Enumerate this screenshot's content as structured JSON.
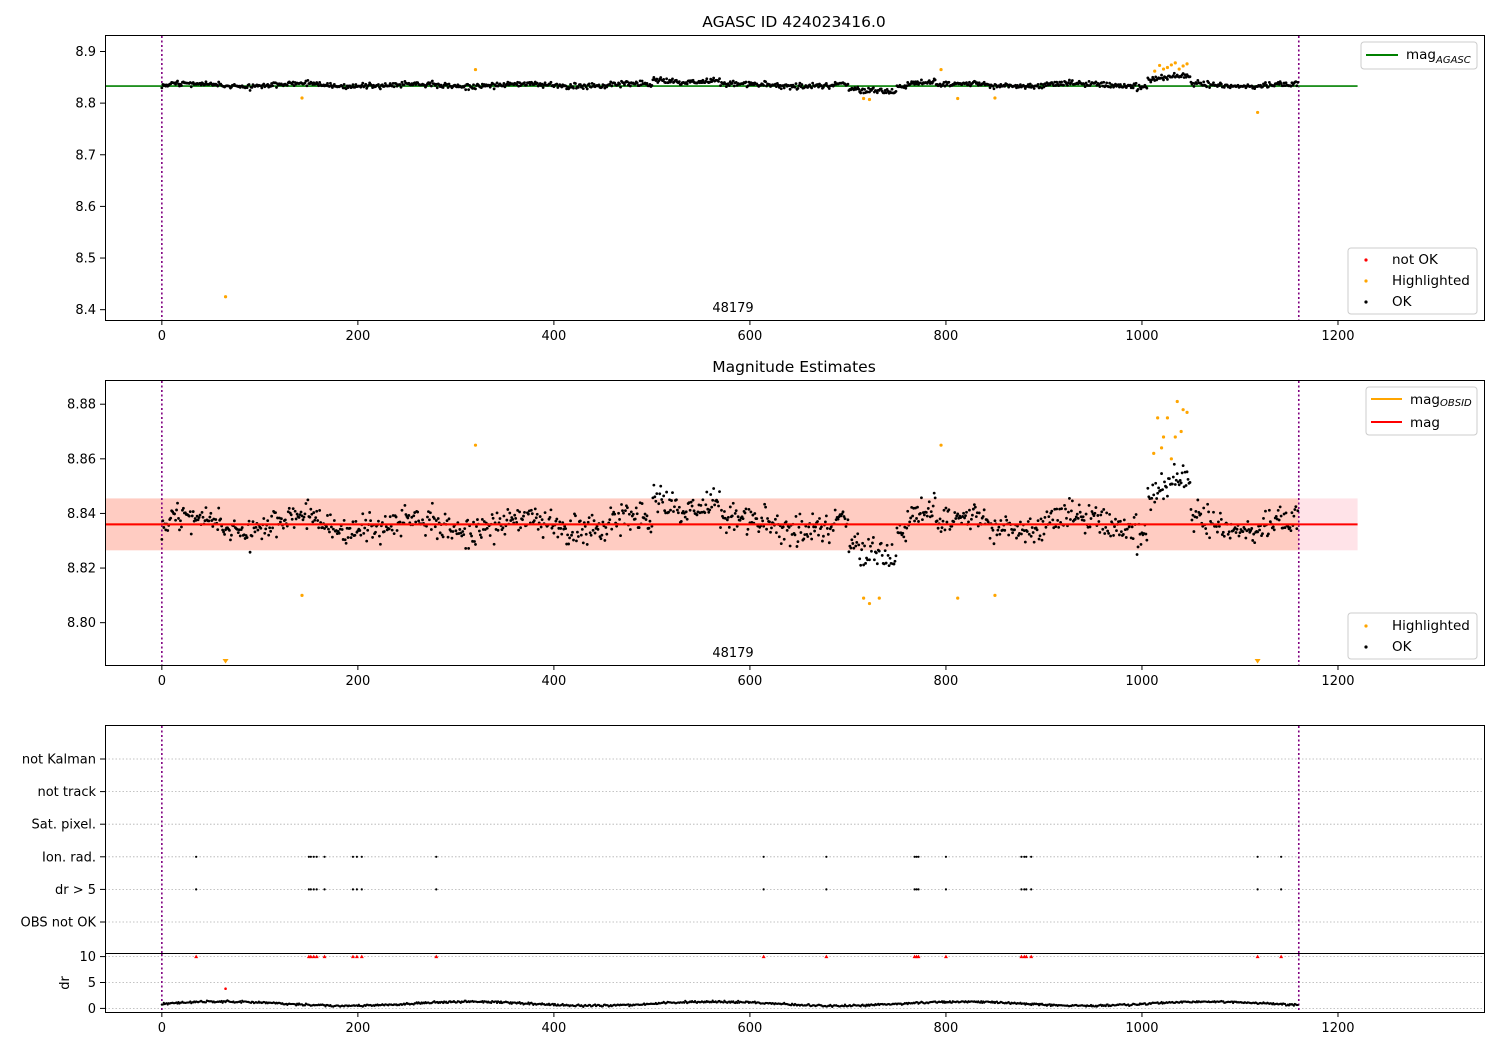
{
  "colors": {
    "ok": "#000000",
    "highlighted": "#ffa500",
    "not_ok": "#ff0000",
    "mag_agasc_line": "#008000",
    "mag_obsid_line": "#ffa500",
    "mag_line": "#ff0000",
    "band_outer": "#ffc0cb",
    "band_inner": "#ffa07a",
    "vline": "#800080"
  },
  "chart_data": [
    {
      "type": "scatter",
      "title": "AGASC ID 424023416.0",
      "xlim": [
        -58,
        1350
      ],
      "ylim": [
        8.38,
        8.93
      ],
      "xticks": [
        0,
        200,
        400,
        600,
        800,
        1000,
        1200
      ],
      "yticks": [
        8.4,
        8.5,
        8.6,
        8.7,
        8.8,
        8.9
      ],
      "vlines": [
        0,
        1160
      ],
      "annotation": {
        "text": "48179",
        "x": 580,
        "y": 8.4
      },
      "hlines": [
        {
          "name": "mag_AGASC",
          "y": 8.833,
          "x": [
            -58,
            1220
          ]
        }
      ],
      "legend": {
        "lines": [
          {
            "label": "mag",
            "sub": "AGASC"
          }
        ],
        "points": [
          "not OK",
          "Highlighted",
          "OK"
        ],
        "line_loc": "upper-right",
        "points_loc": "lower-right"
      },
      "series": [
        {
          "name": "OK",
          "n": 1160,
          "baseline": 8.835,
          "scatter": 0.0085
        },
        {
          "name": "Highlighted",
          "x": [
            65,
            143,
            320,
            716,
            722,
            795,
            812,
            850,
            1013,
            1018,
            1022,
            1026,
            1030,
            1034,
            1038,
            1042,
            1046,
            1118
          ],
          "y": [
            8.425,
            8.81,
            8.865,
            8.809,
            8.807,
            8.865,
            8.809,
            8.81,
            8.862,
            8.873,
            8.866,
            8.869,
            8.874,
            8.878,
            8.866,
            8.872,
            8.876,
            8.782
          ]
        },
        {
          "name": "not OK",
          "x": [],
          "y": []
        }
      ]
    },
    {
      "type": "scatter",
      "title": "Magnitude Estimates",
      "xlim": [
        -58,
        1350
      ],
      "ylim": [
        8.7845,
        8.8885
      ],
      "xticks": [
        0,
        200,
        400,
        600,
        800,
        1000,
        1200
      ],
      "yticks": [
        8.8,
        8.82,
        8.84,
        8.86,
        8.88
      ],
      "ytick_labels": [
        "8.80",
        "8.82",
        "8.84",
        "8.86",
        "8.88"
      ],
      "vlines": [
        0,
        1160
      ],
      "annotation": {
        "text": "48179",
        "x": 580,
        "y": 8.7875
      },
      "hlines": [
        {
          "name": "mag_OBSID",
          "y": 8.836,
          "x": [
            -58,
            1160
          ]
        },
        {
          "name": "mag",
          "y": 8.836,
          "x": [
            -58,
            1220
          ]
        }
      ],
      "bands": [
        {
          "y": [
            8.8265,
            8.8455
          ],
          "x": [
            -58,
            1220
          ],
          "role": "outer"
        },
        {
          "y": [
            8.8265,
            8.8455
          ],
          "x": [
            -58,
            1160
          ],
          "role": "inner"
        }
      ],
      "legend": {
        "lines": [
          {
            "label": "mag",
            "sub": "OBSID"
          },
          {
            "label": "mag",
            "sub": ""
          }
        ],
        "points": [
          "Highlighted",
          "OK"
        ],
        "line_loc": "upper-right",
        "points_loc": "lower-right"
      },
      "series": [
        {
          "name": "OK",
          "n": 1160,
          "baseline": 8.836,
          "scatter": 0.0085
        },
        {
          "name": "Highlighted",
          "x": [
            143,
            320,
            716,
            722,
            732,
            795,
            812,
            850,
            1012,
            1016,
            1020,
            1022,
            1026,
            1030,
            1034,
            1036,
            1040,
            1042,
            1046
          ],
          "y": [
            8.81,
            8.865,
            8.809,
            8.807,
            8.809,
            8.865,
            8.809,
            8.81,
            8.862,
            8.875,
            8.864,
            8.868,
            8.875,
            8.86,
            8.868,
            8.881,
            8.87,
            8.878,
            8.877
          ]
        },
        {
          "name": "Highlighted below range",
          "x": [
            65,
            1118
          ],
          "y": [
            8.785,
            8.785
          ]
        }
      ]
    },
    {
      "type": "scatter",
      "title": "",
      "xlim": [
        -58,
        1350
      ],
      "xticks": [
        0,
        200,
        400,
        600,
        800,
        1000,
        1200
      ],
      "vlines": [
        0,
        1160
      ],
      "categories": [
        "not Kalman",
        "not track",
        "Sat. pixel.",
        "Ion. rad.",
        "dr > 5",
        "OBS not OK"
      ],
      "flags": {
        "Ion. rad.": [
          35,
          150,
          152,
          155,
          158,
          166,
          195,
          199,
          204,
          280,
          614,
          678,
          768,
          770,
          772,
          800,
          877,
          880,
          882,
          887,
          1118,
          1142
        ],
        "dr > 5": [
          35,
          150,
          152,
          155,
          158,
          166,
          195,
          199,
          204,
          280,
          614,
          678,
          768,
          770,
          772,
          800,
          877,
          880,
          882,
          887,
          1118,
          1142
        ],
        "not Kalman": [],
        "not track": [],
        "Sat. pixel.": [],
        "OBS not OK": []
      }
    },
    {
      "type": "scatter",
      "title": "",
      "ylabel": "dr",
      "xlim": [
        -58,
        1350
      ],
      "ylim": [
        -0.5,
        10.5
      ],
      "yticks": [
        0,
        5,
        10
      ],
      "xticks": [
        0,
        200,
        400,
        600,
        800,
        1000,
        1200
      ],
      "vlines": [
        0,
        1160
      ],
      "series": [
        {
          "name": "OK",
          "n": 1160,
          "baseline": 0.9,
          "scatter": 0.35
        },
        {
          "name": "not OK",
          "x": [
            35,
            150,
            152,
            155,
            158,
            166,
            195,
            199,
            204,
            280,
            614,
            678,
            768,
            770,
            772,
            800,
            877,
            880,
            882,
            887,
            1118,
            1142
          ],
          "y": [
            10,
            10,
            10,
            10,
            10,
            10,
            10,
            10,
            10,
            10,
            10,
            10,
            10,
            10,
            10,
            10,
            10,
            10,
            10,
            10,
            10,
            10
          ]
        },
        {
          "name": "Highlighted",
          "x": [
            65
          ],
          "y": [
            3.8
          ]
        }
      ]
    }
  ]
}
